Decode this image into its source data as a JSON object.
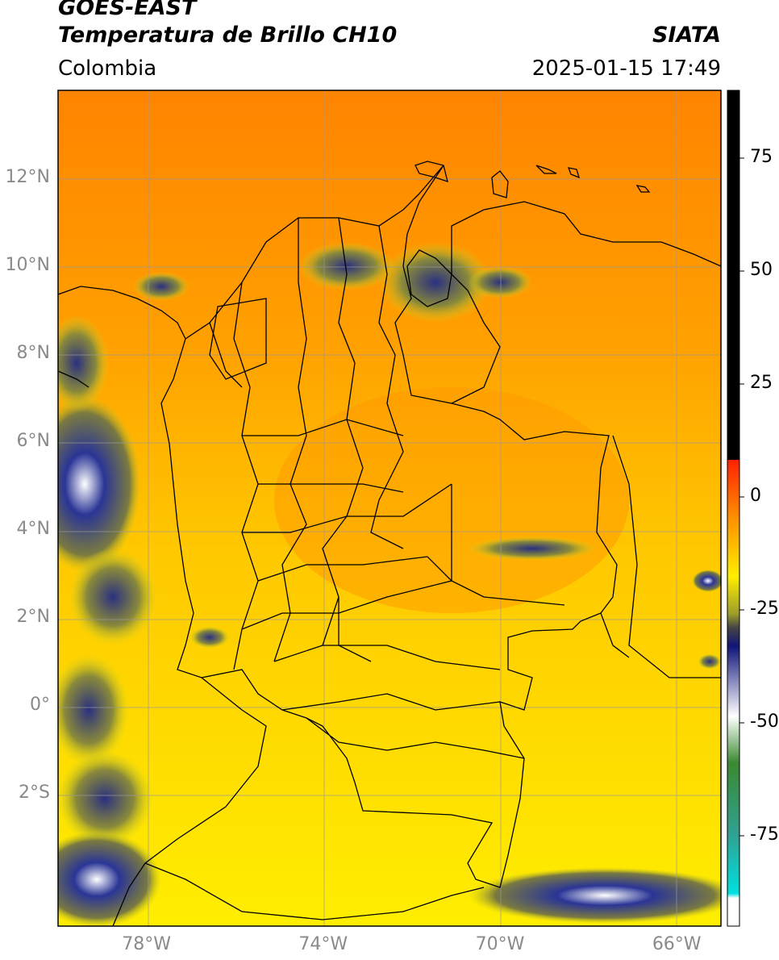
{
  "header": {
    "satellite": "GOES-EAST",
    "product": "Temperatura de Brillo CH10",
    "region": "Colombia",
    "agency": "SIATA",
    "timestamp": "2025-01-15 17:49"
  },
  "axes": {
    "lat_ticks": [
      "12°N",
      "10°N",
      "8°N",
      "6°N",
      "4°N",
      "2°N",
      "0°",
      "2°S"
    ],
    "lat_values": [
      12,
      10,
      8,
      6,
      4,
      2,
      0,
      -2
    ],
    "lon_ticks": [
      "78°W",
      "74°W",
      "70°W",
      "66°W"
    ],
    "lon_values": [
      -78,
      -74,
      -70,
      -66
    ],
    "lon_range": [
      -80,
      -65
    ],
    "lat_range": [
      -5,
      14
    ],
    "grid": true
  },
  "colorbar": {
    "tick_labels": [
      "75",
      "50",
      "25",
      "0",
      "-25",
      "-50",
      "-75"
    ],
    "tick_values": [
      75,
      50,
      25,
      0,
      -25,
      -50,
      -75
    ],
    "range": [
      -95,
      90
    ],
    "colors": {
      "black": "#000000",
      "red": "#ff2000",
      "orange": "#ff8c00",
      "yellow": "#ffee00",
      "olive": "#9e9e2a",
      "navy": "#10157a",
      "white": "#ffffff",
      "green": "#3a8a30",
      "cyan": "#00e0e0"
    }
  },
  "map_colors": {
    "orange": "#ff8c00",
    "gold": "#ffb000",
    "yellow": "#ffe600",
    "cloud": "#1e2a8c",
    "border": "#000000",
    "grid": "#999999"
  }
}
